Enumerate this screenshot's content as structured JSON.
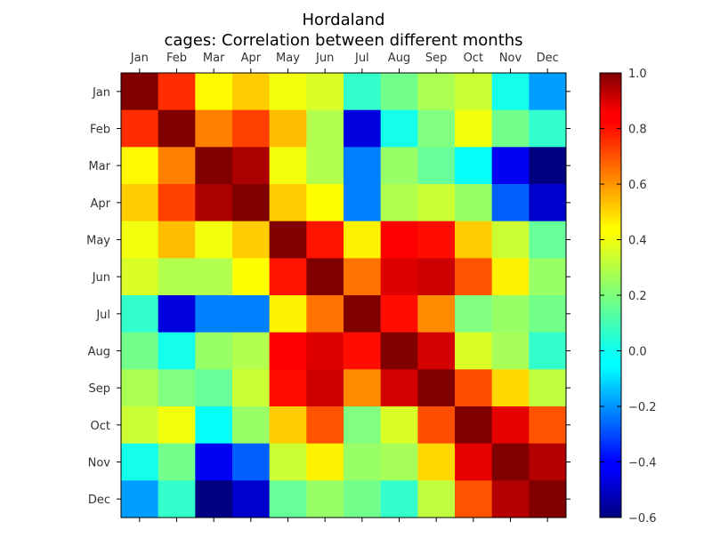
{
  "chart_data": {
    "type": "heatmap",
    "title": "Hordaland",
    "subtitle": "cages: Correlation between different months",
    "xlabel": "",
    "ylabel": "",
    "categories": [
      "Jan",
      "Feb",
      "Mar",
      "Apr",
      "May",
      "Jun",
      "Jul",
      "Aug",
      "Sep",
      "Oct",
      "Nov",
      "Dec"
    ],
    "values": [
      [
        1.0,
        0.73,
        0.41,
        0.48,
        0.38,
        0.34,
        0.08,
        0.18,
        0.27,
        0.32,
        0.03,
        -0.15
      ],
      [
        0.73,
        1.0,
        0.6,
        0.7,
        0.5,
        0.28,
        -0.45,
        0.03,
        0.2,
        0.38,
        0.18,
        0.08
      ],
      [
        0.41,
        0.6,
        1.0,
        0.93,
        0.38,
        0.28,
        -0.2,
        0.24,
        0.16,
        0.01,
        -0.42,
        -0.6
      ],
      [
        0.48,
        0.7,
        0.93,
        1.0,
        0.48,
        0.4,
        -0.2,
        0.28,
        0.32,
        0.24,
        -0.25,
        -0.48
      ],
      [
        0.38,
        0.5,
        0.38,
        0.48,
        1.0,
        0.77,
        0.42,
        0.8,
        0.78,
        0.48,
        0.32,
        0.16
      ],
      [
        0.34,
        0.28,
        0.28,
        0.4,
        0.77,
        1.0,
        0.62,
        0.85,
        0.88,
        0.67,
        0.42,
        0.24
      ],
      [
        0.08,
        -0.45,
        -0.2,
        -0.2,
        0.42,
        0.62,
        1.0,
        0.78,
        0.58,
        0.2,
        0.24,
        0.18
      ],
      [
        0.18,
        0.03,
        0.24,
        0.28,
        0.8,
        0.85,
        0.78,
        1.0,
        0.87,
        0.34,
        0.26,
        0.08
      ],
      [
        0.27,
        0.2,
        0.16,
        0.32,
        0.78,
        0.88,
        0.58,
        0.87,
        1.0,
        0.68,
        0.46,
        0.3
      ],
      [
        0.32,
        0.38,
        0.01,
        0.24,
        0.48,
        0.67,
        0.2,
        0.34,
        0.68,
        1.0,
        0.84,
        0.67
      ],
      [
        0.03,
        0.18,
        -0.42,
        -0.25,
        0.32,
        0.42,
        0.24,
        0.26,
        0.46,
        0.84,
        1.0,
        0.92
      ],
      [
        -0.15,
        0.08,
        -0.6,
        -0.48,
        0.16,
        0.24,
        0.18,
        0.08,
        0.3,
        0.67,
        0.92,
        1.0
      ]
    ],
    "zlim": [
      -0.6,
      1.0
    ],
    "colormap": "jet",
    "colorbar": {
      "ticks": [
        1.0,
        0.8,
        0.6,
        0.4,
        0.2,
        0.0,
        -0.2,
        -0.4,
        -0.6
      ],
      "tick_labels": [
        "1.0",
        "0.8",
        "0.6",
        "0.4",
        "0.2",
        "0.0",
        "−0.2",
        "−0.4",
        "−0.6"
      ]
    },
    "x_tick_position": "top",
    "grid": false
  }
}
